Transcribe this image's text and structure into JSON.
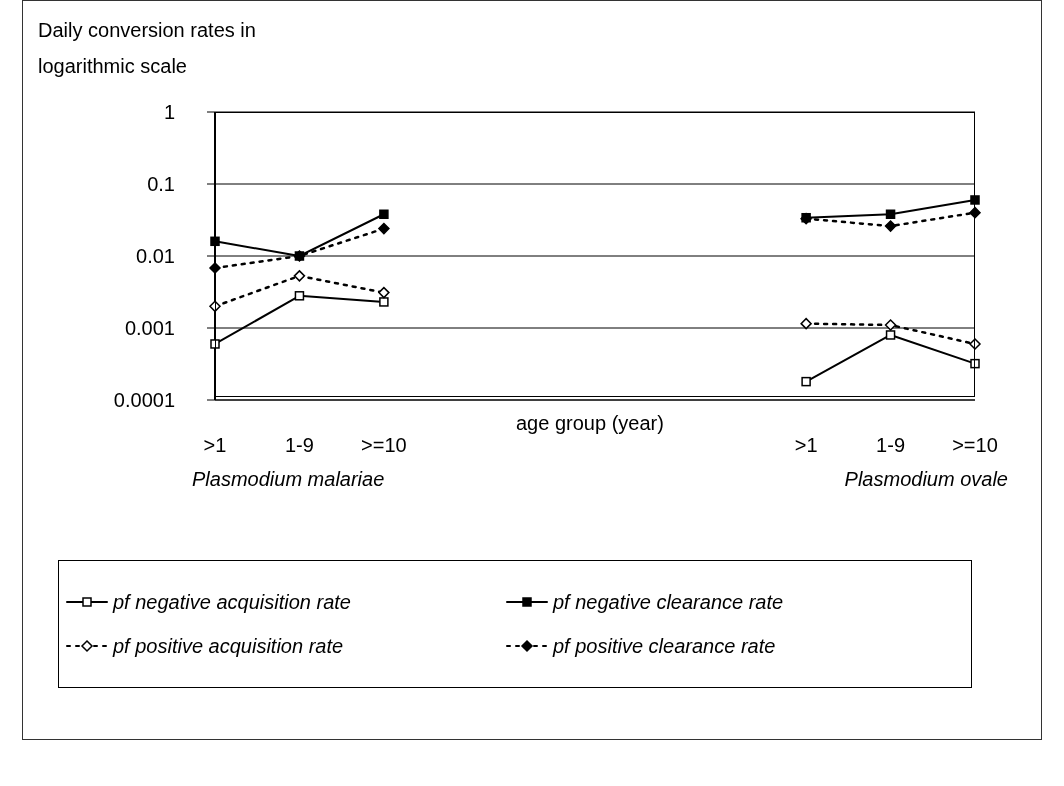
{
  "chart_data": {
    "type": "line",
    "title": "Daily conversion rates in logarithmic scale",
    "xlabel": "age group (year)",
    "categories": [
      ">1",
      "1-9",
      ">=10",
      null,
      null,
      null,
      null,
      ">1",
      "1-9",
      ">=10"
    ],
    "series": [
      {
        "name": "pf negative acquisition rate",
        "color": "#000000",
        "marker": "square",
        "line_style": "solid",
        "values": [
          0.0006,
          0.0028,
          0.0023,
          null,
          null,
          null,
          null,
          0.00018,
          0.0008,
          0.00032
        ]
      },
      {
        "name": "pf negative clearance rate",
        "color": "#000000",
        "marker": "square",
        "line_style": "solid",
        "values": [
          0.016,
          0.01,
          0.038,
          null,
          null,
          null,
          null,
          0.034,
          0.038,
          0.06
        ]
      },
      {
        "name": "pf positive acquisition rate",
        "color": "#000000",
        "marker": "diamond",
        "line_style": "dotted",
        "values": [
          0.002,
          0.0053,
          0.0031,
          null,
          null,
          null,
          null,
          0.00115,
          0.0011,
          0.0006
        ]
      },
      {
        "name": "pf positive clearance rate",
        "color": "#000000",
        "marker": "diamond",
        "line_style": "dotted",
        "values": [
          0.0068,
          0.01,
          0.024,
          null,
          null,
          null,
          null,
          0.033,
          0.026,
          0.04
        ]
      }
    ],
    "log": "y",
    "ylim": [
      0.0001,
      1
    ],
    "yticks": [
      0.0001,
      0.001,
      0.01,
      0.1,
      1
    ],
    "grid": "y",
    "legend": "bottom",
    "annotations": [
      "Plasmodium malariae",
      "Plasmodium ovale"
    ]
  }
}
